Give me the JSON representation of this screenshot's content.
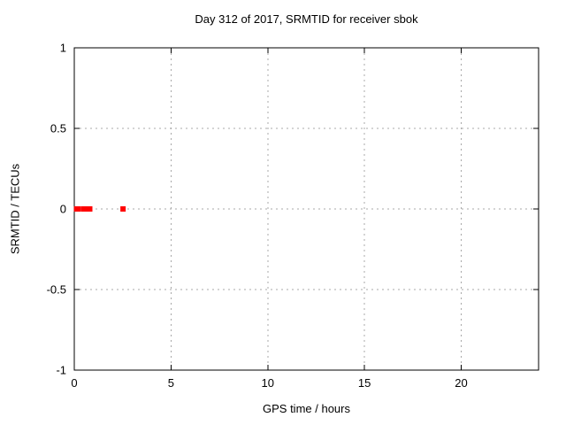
{
  "chart_data": {
    "type": "scatter",
    "title": "Day 312 of 2017, SRMTID for receiver sbok",
    "xlabel": "GPS time / hours",
    "ylabel": "SRMTID / TECUs",
    "xlim": [
      0,
      24
    ],
    "ylim": [
      -1,
      1
    ],
    "x_ticks": [
      {
        "value": 0,
        "label": "0"
      },
      {
        "value": 5,
        "label": "5"
      },
      {
        "value": 10,
        "label": "10"
      },
      {
        "value": 15,
        "label": "15"
      },
      {
        "value": 20,
        "label": "20"
      }
    ],
    "y_ticks": [
      {
        "value": -1,
        "label": "-1"
      },
      {
        "value": -0.5,
        "label": "-0.5"
      },
      {
        "value": 0,
        "label": "0"
      },
      {
        "value": 0.5,
        "label": "0.5"
      },
      {
        "value": 1,
        "label": "1"
      }
    ],
    "grid": true,
    "legend_position": "none",
    "series": [
      {
        "name": "SRMTID",
        "marker": "filled-square",
        "marker_size": 6,
        "color": "#ff0000",
        "points": [
          {
            "x": 0.12,
            "y": 0
          },
          {
            "x": 0.22,
            "y": 0
          },
          {
            "x": 0.5,
            "y": 0
          },
          {
            "x": 0.65,
            "y": 0
          },
          {
            "x": 0.8,
            "y": 0
          },
          {
            "x": 2.52,
            "y": 0
          }
        ]
      }
    ]
  },
  "colors": {
    "background": "#ffffff",
    "border": "#000000",
    "grid": "#a8a8a8",
    "text": "#000000",
    "point": "#ff0000"
  }
}
